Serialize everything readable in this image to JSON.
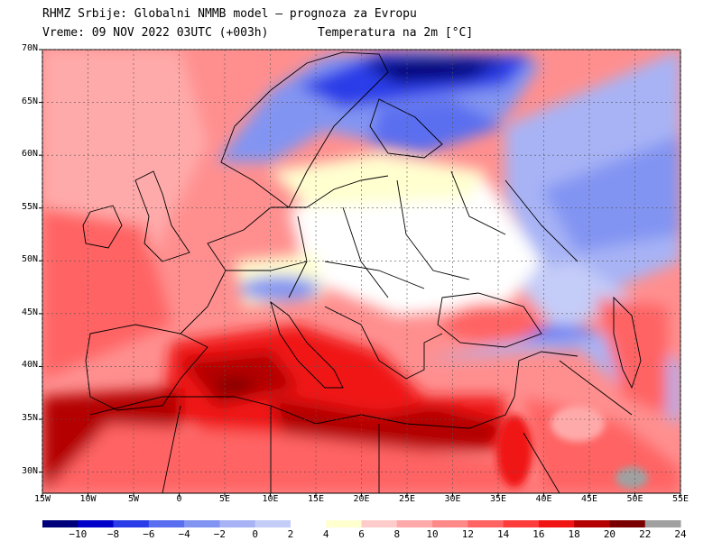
{
  "header": {
    "title": "RHMZ Srbije: Globalni NMMB model — prognoza za Evropu",
    "subtitle_left": "Vreme: 09 NOV 2022 03UTC (+003h)",
    "subtitle_right": "Temperatura na 2m [°C]"
  },
  "map": {
    "lon_range": [
      -15,
      55
    ],
    "lat_range": [
      28,
      70
    ],
    "lat_labels": [
      "70N",
      "65N",
      "60N",
      "55N",
      "50N",
      "45N",
      "40N",
      "35N",
      "30N"
    ],
    "lat_values": [
      70,
      65,
      60,
      55,
      50,
      45,
      40,
      35,
      30
    ],
    "lon_labels": [
      "15W",
      "10W",
      "5W",
      "0",
      "5E",
      "10E",
      "15E",
      "20E",
      "25E",
      "30E",
      "35E",
      "40E",
      "45E",
      "50E",
      "55E"
    ],
    "lon_values": [
      -15,
      -10,
      -5,
      0,
      5,
      10,
      15,
      20,
      25,
      30,
      35,
      40,
      45,
      50,
      55
    ]
  },
  "colorbar": {
    "labels": [
      "−10",
      "−8",
      "−6",
      "−4",
      "−2",
      "0",
      "2",
      "4",
      "6",
      "8",
      "10",
      "12",
      "14",
      "16",
      "18",
      "20",
      "22",
      "24"
    ],
    "colors": [
      "#00007a",
      "#0000c8",
      "#2a3ce8",
      "#5a6ef0",
      "#8294f2",
      "#a7b3f5",
      "#c4ccf8",
      "#ffffff",
      "#ffffd0",
      "#ffcccc",
      "#ffaaaa",
      "#ff8888",
      "#ff6464",
      "#ff3c3c",
      "#f01414",
      "#b40000",
      "#7a0000",
      "#a0a0a0"
    ]
  }
}
